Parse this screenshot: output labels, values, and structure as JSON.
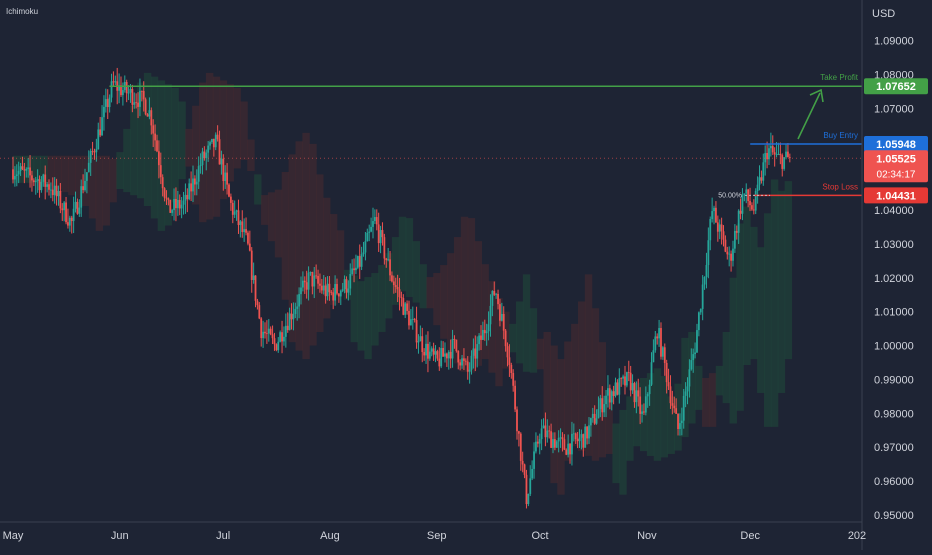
{
  "indicator_label": "Ichimoku",
  "currency": "USD",
  "colors": {
    "background": "#1e2434",
    "up": "#26a69a",
    "down": "#ef5350",
    "take_profit": "#43a047",
    "buy_entry": "#1e6fd9",
    "stop_loss": "#e53935",
    "axis_text": "#d1d4dc",
    "cloud_green": "#1f4a3b",
    "cloud_red": "#4a2a30"
  },
  "levels": {
    "take_profit": {
      "label": "Take Profit",
      "value": 1.07652,
      "text": "1.07652"
    },
    "buy_entry": {
      "label": "Buy Entry",
      "value": 1.05948,
      "text": "1.05948"
    },
    "stop_loss": {
      "label": "Stop Loss",
      "value": 1.04431,
      "text": "1.04431"
    },
    "current": {
      "value": 1.05525,
      "text": "1.05525",
      "countdown": "02:34:17"
    },
    "fib": {
      "label": "50.00%",
      "value": 1.04431
    }
  },
  "chart_data": {
    "type": "candlestick",
    "title": "",
    "x_axis_labels": [
      "May",
      "Jun",
      "Jul",
      "Aug",
      "Sep",
      "Oct",
      "Nov",
      "Dec",
      "202"
    ],
    "y_axis_labels": [
      "1.09000",
      "1.08000",
      "1.07000",
      "1.06000",
      "1.05000",
      "1.04000",
      "1.03000",
      "1.02000",
      "1.01000",
      "1.00000",
      "0.99000",
      "0.98000",
      "0.97000",
      "0.96000",
      "0.95000"
    ],
    "ylim": [
      0.95,
      1.095
    ],
    "price_path": [
      [
        "2022-05-01",
        1.052
      ],
      [
        "2022-05-12",
        1.047
      ],
      [
        "2022-05-18",
        1.036
      ],
      [
        "2022-05-30",
        1.077
      ],
      [
        "2022-06-08",
        1.072
      ],
      [
        "2022-06-10",
        1.068
      ],
      [
        "2022-06-15",
        1.04
      ],
      [
        "2022-06-20",
        1.042
      ],
      [
        "2022-06-25",
        1.055
      ],
      [
        "2022-06-29",
        1.06
      ],
      [
        "2022-07-03",
        1.042
      ],
      [
        "2022-07-08",
        1.03
      ],
      [
        "2022-07-12",
        1.005
      ],
      [
        "2022-07-16",
        1.0
      ],
      [
        "2022-07-20",
        1.008
      ],
      [
        "2022-07-26",
        1.02
      ],
      [
        "2022-08-01",
        1.015
      ],
      [
        "2022-08-06",
        1.018
      ],
      [
        "2022-08-10",
        1.025
      ],
      [
        "2022-08-14",
        1.037
      ],
      [
        "2022-08-19",
        1.02
      ],
      [
        "2022-08-23",
        1.01
      ],
      [
        "2022-08-28",
        1.0
      ],
      [
        "2022-09-01",
        0.995
      ],
      [
        "2022-09-06",
        1.0
      ],
      [
        "2022-09-10",
        0.992
      ],
      [
        "2022-09-15",
        1.005
      ],
      [
        "2022-09-18",
        1.017
      ],
      [
        "2022-09-22",
        0.997
      ],
      [
        "2022-09-27",
        0.955
      ],
      [
        "2022-10-01",
        0.975
      ],
      [
        "2022-10-08",
        0.97
      ],
      [
        "2022-10-14",
        0.973
      ],
      [
        "2022-10-20",
        0.985
      ],
      [
        "2022-10-27",
        0.99
      ],
      [
        "2022-10-31",
        0.978
      ],
      [
        "2022-11-04",
        1.005
      ],
      [
        "2022-11-10",
        0.975
      ],
      [
        "2022-11-15",
        1.0
      ],
      [
        "2022-11-20",
        1.04
      ],
      [
        "2022-11-25",
        1.025
      ],
      [
        "2022-11-29",
        1.045
      ],
      [
        "2022-12-02",
        1.04
      ],
      [
        "2022-12-06",
        1.058
      ],
      [
        "2022-12-09",
        1.055
      ],
      [
        "2022-12-13",
        1.055
      ]
    ],
    "grid": false
  }
}
